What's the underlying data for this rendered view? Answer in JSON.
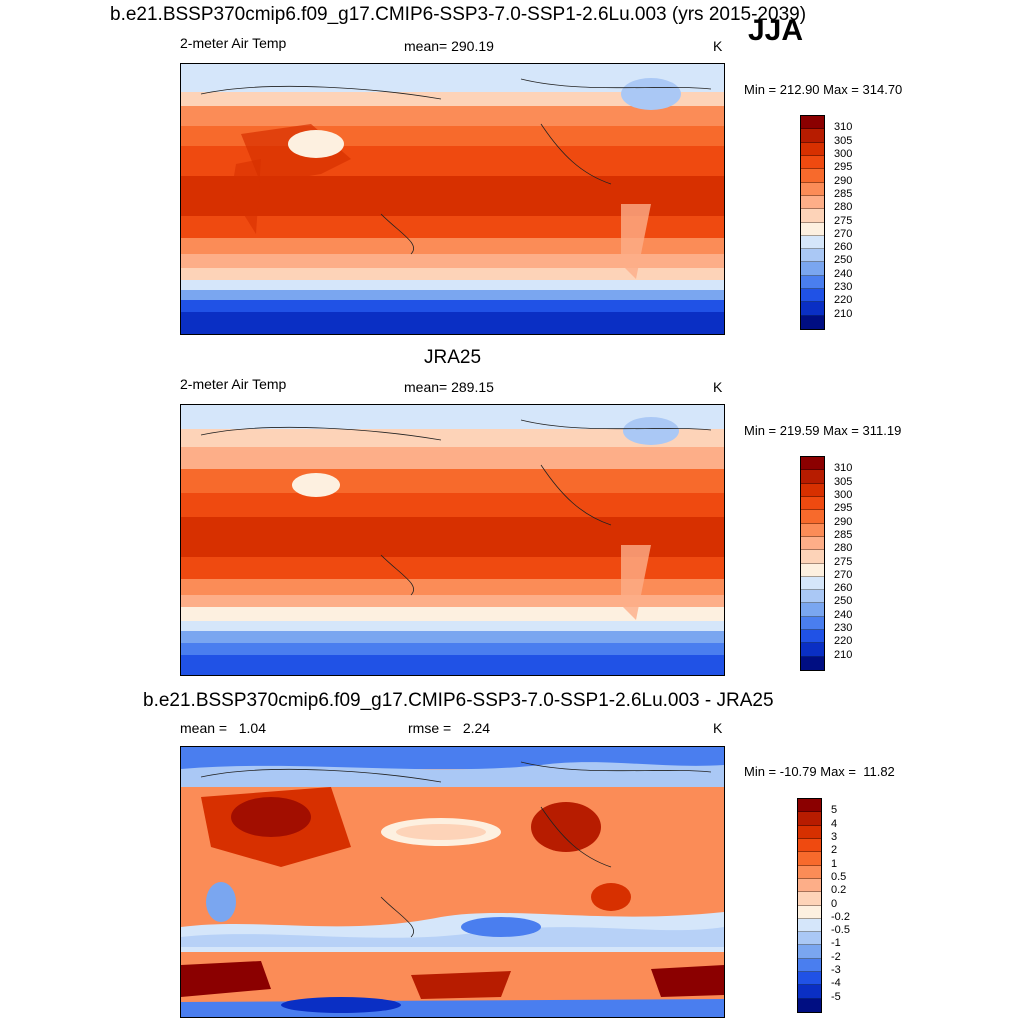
{
  "season": "JJA",
  "panels": [
    {
      "title": "b.e21.BSSP370cmip6.f09_g17.CMIP6-SSP3-7.0-SSP1-2.6Lu.003 (yrs 2015-2039)",
      "left_label": "2-meter Air Temp",
      "center_label": "mean= 290.19",
      "right_label": "K",
      "minmax": "Min = 212.90 Max = 314.70"
    },
    {
      "title": "JRA25",
      "left_label": "2-meter Air Temp",
      "center_label": "mean= 289.15",
      "right_label": "K",
      "minmax": "Min = 219.59 Max = 311.19"
    },
    {
      "title": "b.e21.BSSP370cmip6.f09_g17.CMIP6-SSP3-7.0-SSP1-2.6Lu.003 - JRA25",
      "left_label": "mean =   1.04",
      "center_label": "rmse =   2.24",
      "right_label": "K",
      "minmax": "Min = -10.79 Max =  11.82"
    }
  ],
  "colorbars": {
    "temperature": {
      "labels": [
        "310",
        "305",
        "300",
        "295",
        "290",
        "285",
        "280",
        "275",
        "270",
        "260",
        "250",
        "240",
        "230",
        "220",
        "210"
      ],
      "colors": [
        "#8b0000",
        "#b71c00",
        "#d73000",
        "#ef4a10",
        "#f76a2c",
        "#fb8c57",
        "#fdae88",
        "#fdd3b8",
        "#fdf0e0",
        "#d5e6fa",
        "#aac8f5",
        "#7aa6f0",
        "#4a7eef",
        "#2052e6",
        "#0a2fc4",
        "#000e82"
      ]
    },
    "difference": {
      "labels": [
        "5",
        "4",
        "3",
        "2",
        "1",
        "0.5",
        "0.2",
        "0",
        "-0.2",
        "-0.5",
        "-1",
        "-2",
        "-3",
        "-4",
        "-5"
      ],
      "colors": [
        "#8b0000",
        "#b71c00",
        "#d73000",
        "#ef4a10",
        "#f76a2c",
        "#fb8c57",
        "#fdae88",
        "#fdd3b8",
        "#fdf0e0",
        "#d5e6fa",
        "#aac8f5",
        "#7aa6f0",
        "#4a7eef",
        "#2052e6",
        "#0a2fc4",
        "#000e82"
      ]
    }
  }
}
